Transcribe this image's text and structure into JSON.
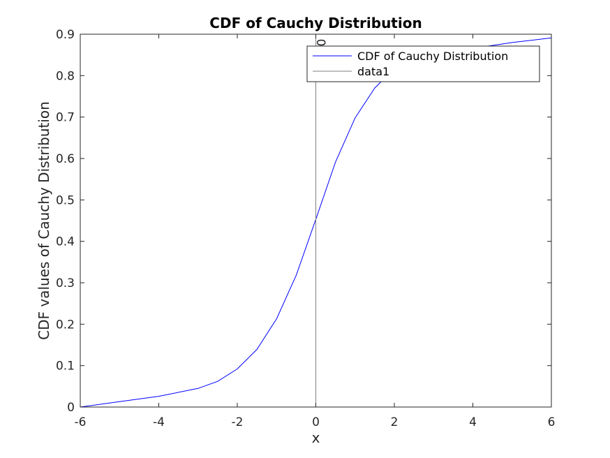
{
  "chart_data": {
    "type": "line",
    "title": "CDF of Cauchy Distribution",
    "xlabel": "x",
    "ylabel": "CDF values of Cauchy Distribution",
    "xlim": [
      -6,
      6
    ],
    "ylim": [
      0,
      0.9
    ],
    "xticks": [
      "-6",
      "-4",
      "-2",
      "0",
      "2",
      "4",
      "6"
    ],
    "yticks": [
      "0",
      "0.1",
      "0.2",
      "0.3",
      "0.4",
      "0.5",
      "0.6",
      "0.7",
      "0.8",
      "0.9"
    ],
    "grid": false,
    "legend_position": "top-right",
    "series": [
      {
        "name": "CDF of Cauchy Distribution",
        "color": "#0000ff",
        "x": [
          -6,
          -5,
          -4,
          -3,
          -2.5,
          -2,
          -1.5,
          -1,
          -0.5,
          0,
          0.5,
          1,
          1.5,
          2,
          2.5,
          3,
          4,
          5,
          6
        ],
        "y": [
          0,
          0.013,
          0.026,
          0.045,
          0.062,
          0.092,
          0.139,
          0.213,
          0.318,
          0.453,
          0.591,
          0.698,
          0.77,
          0.817,
          0.835,
          0.848,
          0.866,
          0.88,
          0.891
        ]
      },
      {
        "name": "data1",
        "color": "#7f7f7f",
        "x": [
          0,
          0
        ],
        "y": [
          0,
          0.9
        ]
      }
    ],
    "annotations": [
      {
        "text": "0",
        "x": 0,
        "y": 0.9
      }
    ]
  }
}
